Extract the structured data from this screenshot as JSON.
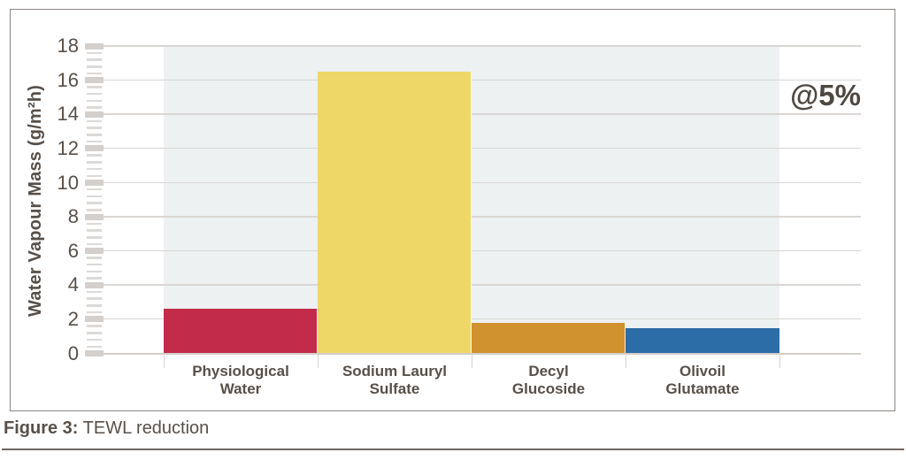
{
  "chart_data": {
    "type": "bar",
    "title": "",
    "ylabel": "Water Vapour Mass (g/m²h)",
    "categories": [
      "Physiological Water",
      "Sodium Lauryl Sulfate",
      "Decyl Glucoside",
      "Olivoil Glutamate"
    ],
    "category_label_lines": [
      [
        "Physiological",
        "Water"
      ],
      [
        "Sodium Lauryl",
        "Sulfate"
      ],
      [
        "Decyl",
        "Glucoside"
      ],
      [
        "Olivoil",
        "Glutamate"
      ]
    ],
    "values": [
      2.6,
      16.5,
      1.8,
      1.5
    ],
    "bar_colors": [
      "#c22b4a",
      "#eed766",
      "#d0922f",
      "#2c6ca7"
    ],
    "ylim": [
      0,
      18
    ],
    "ytick_step": 2,
    "minor_ticks_per_interval": 4,
    "grid": true,
    "legend": "none",
    "annotation": "@5%",
    "plot_background": "#edf1f2"
  },
  "figure": {
    "caption_label": "Figure 3:",
    "caption_text": "TEWL reduction"
  },
  "colors": {
    "text": "#57504a",
    "grid": "#d9d6d3",
    "tick": "#d2cfcc",
    "border": "#8b8581",
    "rule": "#6e6761"
  }
}
